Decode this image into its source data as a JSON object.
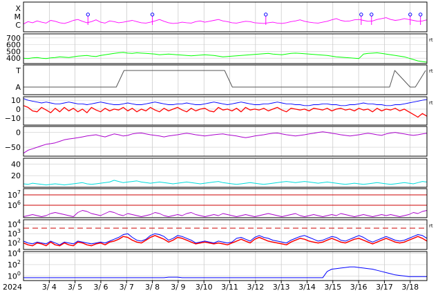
{
  "chart_data": {
    "type": "line",
    "x_start_label": "2024",
    "dates": [
      "3/ 4",
      "3/ 5",
      "3/ 6",
      "3/ 7",
      "3/ 8",
      "3/ 9",
      "3/10",
      "3/11",
      "3/12",
      "3/13",
      "3/14",
      "3/15",
      "3/16",
      "3/17",
      "3/18"
    ],
    "side_marker": "rt",
    "grid": true,
    "panels": [
      {
        "id": "flare-class",
        "type": "line",
        "tick_labels": [
          "X",
          "M",
          "C"
        ],
        "colors": {
          "series": "#ff00ff",
          "markers": "#0000ff"
        },
        "has_side_marker": false,
        "marker_days": [
          5.5,
          8.0,
          12.4,
          16.1,
          16.5,
          18.0,
          18.4
        ],
        "values": [
          0.05,
          0.18,
          0.12,
          0.22,
          0.15,
          0.1,
          0.25,
          0.2,
          0.12,
          0.08,
          0.15,
          0.25,
          0.3,
          0.2,
          0.12,
          0.18,
          0.28,
          0.15,
          0.1,
          0.22,
          0.18,
          0.12,
          0.15,
          0.2,
          0.25,
          0.18,
          0.12,
          0.1,
          0.15,
          0.22,
          0.3,
          0.2,
          0.12,
          0.08,
          0.1,
          0.15,
          0.12,
          0.1,
          0.18,
          0.22,
          0.15,
          0.2,
          0.25,
          0.3,
          0.22,
          0.18,
          0.12,
          0.1,
          0.15,
          0.2,
          0.18,
          0.12,
          0.1,
          0.08,
          0.12,
          0.15,
          0.1,
          0.08,
          0.12,
          0.18,
          0.22,
          0.28,
          0.2,
          0.15,
          0.12,
          0.1,
          0.15,
          0.2,
          0.28,
          0.35,
          0.25,
          0.2,
          0.22,
          0.28,
          0.3,
          0.25,
          0.2,
          0.22,
          0.3,
          0.35,
          0.4,
          0.3,
          0.25,
          0.28,
          0.35,
          0.3,
          0.25,
          0.2,
          0.22,
          0.28
        ]
      },
      {
        "id": "solar-wind-speed",
        "type": "line",
        "tick_labels": [
          "700",
          "600",
          "500",
          "400"
        ],
        "y_ticks": [
          700,
          600,
          500,
          400
        ],
        "ylim": [
          320,
          760
        ],
        "colors": {
          "series": "#00ff00"
        },
        "has_side_marker": true,
        "values": [
          400,
          395,
          405,
          410,
          400,
          395,
          405,
          410,
          420,
          415,
          410,
          420,
          430,
          435,
          440,
          430,
          425,
          440,
          450,
          460,
          470,
          480,
          485,
          475,
          470,
          480,
          475,
          470,
          465,
          460,
          450,
          455,
          460,
          455,
          450,
          445,
          440,
          435,
          440,
          445,
          450,
          445,
          440,
          430,
          420,
          425,
          430,
          435,
          440,
          445,
          450,
          455,
          460,
          465,
          470,
          460,
          455,
          450,
          460,
          470,
          475,
          470,
          465,
          460,
          455,
          450,
          445,
          440,
          430,
          420,
          415,
          410,
          405,
          400,
          395,
          460,
          470,
          475,
          480,
          470,
          460,
          450,
          440,
          430,
          420,
          400,
          380,
          360,
          350,
          340
        ]
      },
      {
        "id": "magnetic-polarity",
        "type": "line",
        "tick_labels": [
          "T",
          "A"
        ],
        "colors": {
          "toward": "#88ccff",
          "away": "#ffaaff",
          "trace": "#555555"
        },
        "has_side_marker": true,
        "state_days": [
          3.0,
          6.6,
          6.9,
          10.8,
          11.1,
          17.2,
          17.4,
          18.0,
          18.2,
          18.6
        ],
        "state_values": [
          0,
          0,
          1,
          1,
          0,
          0,
          1,
          0,
          0,
          1
        ]
      },
      {
        "id": "imf-bt-bz",
        "type": "line",
        "tick_labels": [
          "10",
          "0",
          "−10"
        ],
        "y_ticks": [
          10,
          0,
          -10
        ],
        "ylim": [
          -18,
          14
        ],
        "colors": {
          "bt": "#0000ff",
          "bz": "#ff0000"
        },
        "has_side_marker": true,
        "bt": [
          12,
          10,
          9,
          8,
          7,
          8,
          7,
          6,
          6,
          7,
          8,
          7,
          6,
          6,
          5,
          6,
          7,
          8,
          7,
          6,
          5,
          5,
          6,
          7,
          6,
          5,
          5,
          6,
          7,
          8,
          7,
          6,
          5,
          5,
          6,
          6,
          7,
          6,
          5,
          5,
          6,
          7,
          8,
          7,
          6,
          5,
          6,
          7,
          8,
          7,
          6,
          5,
          5,
          6,
          6,
          7,
          8,
          7,
          6,
          6,
          5,
          5,
          4,
          4,
          5,
          5,
          6,
          6,
          5,
          5,
          4,
          4,
          5,
          5,
          6,
          7,
          6,
          6,
          5,
          5,
          4,
          4,
          5,
          5,
          6,
          7,
          8,
          9,
          10,
          11
        ],
        "bz": [
          4,
          2,
          -2,
          -3,
          2,
          -1,
          -4,
          1,
          -3,
          2,
          -2,
          1,
          -3,
          0,
          -4,
          2,
          -1,
          -3,
          1,
          -2,
          0,
          -1,
          2,
          -2,
          1,
          -3,
          0,
          -2,
          2,
          -1,
          -3,
          1,
          -2,
          0,
          2,
          -1,
          -3,
          1,
          -2,
          0,
          1,
          -2,
          -3,
          2,
          -1,
          0,
          -2,
          1,
          -3,
          2,
          -1,
          0,
          -1,
          1,
          -2,
          0,
          2,
          -1,
          -3,
          1,
          0,
          -1,
          0,
          -2,
          1,
          0,
          -1,
          1,
          -2,
          0,
          1,
          -1,
          0,
          -2,
          1,
          -1,
          0,
          -3,
          1,
          -2,
          0,
          -1,
          1,
          -2,
          0,
          -3,
          -6,
          -9,
          -5,
          -8
        ]
      },
      {
        "id": "dst-index",
        "type": "line",
        "tick_labels": [
          "0",
          "−50"
        ],
        "y_ticks": [
          0,
          -50
        ],
        "ylim": [
          -80,
          20
        ],
        "colors": {
          "series": "#aa00cc"
        },
        "has_side_marker": false,
        "values": [
          -70,
          -60,
          -55,
          -50,
          -45,
          -40,
          -38,
          -35,
          -30,
          -25,
          -22,
          -20,
          -18,
          -15,
          -12,
          -10,
          -8,
          -12,
          -15,
          -10,
          -5,
          -8,
          -12,
          -10,
          -5,
          -3,
          -2,
          -5,
          -8,
          -10,
          -12,
          -15,
          -12,
          -10,
          -8,
          -5,
          -3,
          -5,
          -8,
          -10,
          -12,
          -10,
          -8,
          -6,
          -5,
          -8,
          -10,
          -12,
          -15,
          -18,
          -15,
          -12,
          -10,
          -8,
          -5,
          -3,
          -2,
          -5,
          -8,
          -10,
          -12,
          -10,
          -8,
          -5,
          -3,
          0,
          2,
          0,
          -3,
          -5,
          -8,
          -10,
          -12,
          -10,
          -8,
          -5,
          -3,
          -5,
          -8,
          -10,
          -5,
          -2,
          0,
          -3,
          -5,
          -8,
          -10,
          -8,
          -5,
          -3
        ]
      },
      {
        "id": "kp-index",
        "type": "line",
        "tick_labels": [
          "40",
          "20"
        ],
        "y_ticks": [
          40,
          20
        ],
        "ylim": [
          0,
          50
        ],
        "colors": {
          "series": "#00dddd"
        },
        "has_side_marker": false,
        "values": [
          6,
          5,
          7,
          6,
          5,
          4,
          5,
          6,
          5,
          4,
          5,
          6,
          7,
          8,
          6,
          5,
          6,
          7,
          8,
          9,
          12,
          10,
          8,
          9,
          10,
          11,
          9,
          8,
          7,
          8,
          9,
          8,
          7,
          6,
          7,
          8,
          9,
          8,
          7,
          6,
          7,
          8,
          9,
          10,
          8,
          7,
          6,
          5,
          6,
          7,
          8,
          7,
          6,
          5,
          6,
          7,
          8,
          9,
          10,
          9,
          8,
          9,
          10,
          9,
          8,
          7,
          8,
          9,
          8,
          7,
          6,
          5,
          6,
          7,
          6,
          5,
          6,
          7,
          8,
          7,
          6,
          5,
          6,
          7,
          8,
          7,
          6,
          8,
          10,
          9
        ]
      },
      {
        "id": "proton-flux",
        "type": "line",
        "tick_labels": [
          "10^7",
          "10^6"
        ],
        "y_ticks": [
          7,
          6
        ],
        "ylim": [
          4.8,
          7.6
        ],
        "colors": {
          "series": "#aa00cc",
          "threshold": "#cc0000"
        },
        "has_side_marker": false,
        "threshold_levels": [
          7,
          6
        ],
        "values": [
          4.9,
          5.0,
          5.1,
          5.0,
          4.9,
          5.0,
          5.2,
          5.3,
          5.2,
          5.1,
          5.0,
          4.9,
          5.3,
          5.5,
          5.4,
          5.2,
          5.1,
          5.0,
          5.2,
          5.4,
          5.3,
          5.1,
          5.0,
          5.2,
          5.1,
          5.0,
          4.9,
          5.0,
          5.1,
          5.3,
          5.2,
          5.0,
          4.9,
          5.0,
          5.1,
          5.0,
          5.2,
          5.3,
          5.1,
          5.0,
          4.9,
          5.0,
          5.1,
          5.0,
          5.2,
          5.1,
          5.0,
          4.9,
          5.0,
          5.1,
          5.0,
          4.9,
          5.0,
          5.1,
          5.2,
          5.1,
          5.0,
          4.9,
          5.0,
          5.1,
          5.2,
          5.0,
          4.9,
          5.0,
          5.1,
          5.0,
          4.9,
          5.0,
          5.1,
          5.0,
          5.2,
          5.1,
          5.0,
          4.9,
          5.0,
          5.1,
          5.0,
          4.9,
          5.0,
          5.1,
          5.0,
          5.1,
          5.0,
          4.9,
          5.0,
          5.1,
          5.3,
          5.2,
          5.4,
          5.5
        ]
      },
      {
        "id": "electron-flux",
        "type": "line",
        "tick_labels": [
          "10^4",
          "10^3",
          "10^2"
        ],
        "y_ticks": [
          4,
          3,
          2
        ],
        "ylim": [
          1.3,
          4.5
        ],
        "colors": {
          "series1": "#0000ff",
          "series2": "#ff0000",
          "threshold": "#cc0000"
        },
        "has_side_marker": true,
        "threshold_level": 3.6,
        "series1": [
          2.2,
          2.0,
          1.9,
          2.1,
          2.0,
          1.9,
          2.2,
          2.0,
          1.8,
          2.1,
          2.0,
          1.9,
          2.2,
          2.1,
          2.0,
          1.9,
          2.0,
          2.1,
          2.0,
          2.2,
          2.4,
          2.6,
          2.9,
          3.0,
          2.6,
          2.3,
          2.2,
          2.4,
          2.8,
          3.0,
          2.9,
          2.7,
          2.3,
          2.5,
          2.8,
          2.7,
          2.5,
          2.3,
          2.0,
          2.1,
          2.2,
          2.1,
          2.0,
          2.2,
          2.1,
          2.0,
          2.1,
          2.5,
          2.6,
          2.4,
          2.2,
          2.6,
          2.8,
          2.6,
          2.5,
          2.3,
          2.2,
          2.1,
          2.0,
          2.3,
          2.5,
          2.7,
          2.8,
          2.6,
          2.4,
          2.2,
          2.3,
          2.5,
          2.7,
          2.6,
          2.3,
          2.2,
          2.4,
          2.6,
          2.8,
          2.6,
          2.3,
          2.1,
          2.3,
          2.5,
          2.7,
          2.5,
          2.3,
          2.2,
          2.3,
          2.5,
          2.7,
          2.9,
          2.8,
          2.5
        ],
        "series2": [
          2.0,
          1.8,
          1.7,
          2.0,
          1.9,
          1.7,
          2.1,
          1.8,
          1.7,
          2.0,
          1.8,
          1.7,
          2.1,
          2.0,
          1.8,
          1.7,
          1.9,
          2.0,
          1.8,
          2.1,
          2.2,
          2.4,
          2.7,
          2.6,
          2.3,
          2.1,
          2.0,
          2.3,
          2.6,
          2.8,
          2.6,
          2.4,
          2.1,
          2.3,
          2.6,
          2.5,
          2.3,
          2.1,
          1.9,
          2.0,
          2.1,
          2.0,
          1.9,
          2.0,
          1.9,
          1.8,
          2.0,
          2.2,
          2.4,
          2.2,
          2.0,
          2.4,
          2.6,
          2.4,
          2.2,
          2.1,
          2.0,
          1.9,
          1.8,
          2.1,
          2.3,
          2.5,
          2.4,
          2.2,
          2.1,
          2.0,
          2.1,
          2.3,
          2.5,
          2.3,
          2.1,
          2.0,
          2.2,
          2.4,
          2.5,
          2.3,
          2.1,
          1.9,
          2.1,
          2.3,
          2.5,
          2.3,
          2.1,
          2.0,
          2.1,
          2.3,
          2.5,
          2.7,
          2.5,
          2.2
        ]
      },
      {
        "id": "xray-flux",
        "type": "line",
        "tick_labels": [
          "10^4",
          "10^2",
          "10^0"
        ],
        "y_ticks": [
          4,
          2,
          0
        ],
        "ylim": [
          -0.8,
          4.3
        ],
        "colors": {
          "series": "#0000ff"
        },
        "has_side_marker": false,
        "values": [
          -0.3,
          -0.3,
          -0.3,
          -0.3,
          -0.3,
          -0.3,
          -0.3,
          -0.3,
          -0.3,
          -0.3,
          -0.3,
          -0.3,
          -0.3,
          -0.3,
          -0.3,
          -0.3,
          -0.3,
          -0.3,
          -0.3,
          -0.3,
          -0.3,
          -0.3,
          -0.3,
          -0.3,
          -0.3,
          -0.3,
          -0.3,
          -0.3,
          -0.3,
          -0.3,
          -0.3,
          -0.3,
          -0.2,
          -0.2,
          -0.2,
          -0.3,
          -0.3,
          -0.3,
          -0.3,
          -0.3,
          -0.3,
          -0.3,
          -0.3,
          -0.3,
          -0.3,
          -0.3,
          -0.3,
          -0.3,
          -0.3,
          -0.3,
          -0.3,
          -0.3,
          -0.3,
          -0.3,
          -0.3,
          -0.3,
          -0.3,
          -0.3,
          -0.3,
          -0.3,
          -0.3,
          -0.3,
          -0.3,
          -0.3,
          -0.3,
          -0.3,
          -0.3,
          0.8,
          1.2,
          1.3,
          1.4,
          1.5,
          1.6,
          1.6,
          1.5,
          1.4,
          1.3,
          1.2,
          1.0,
          0.8,
          0.6,
          0.4,
          0.2,
          0.1,
          0.0,
          -0.1,
          -0.1,
          -0.1,
          -0.1,
          -0.1
        ]
      }
    ]
  }
}
